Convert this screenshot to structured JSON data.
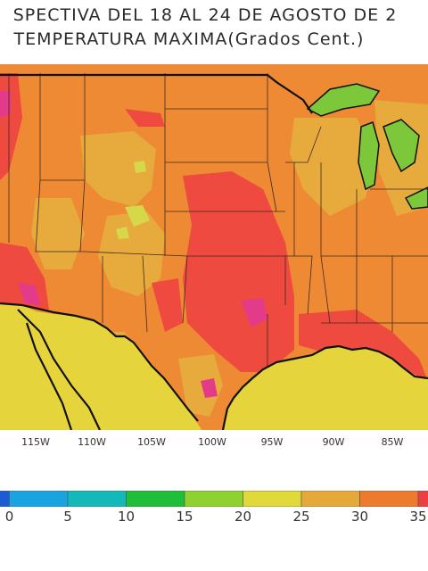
{
  "title_line1": "SPECTIVA DEL 18 AL 24 DE AGOSTO DE 2",
  "title_line2": "TEMPERATURA MAXIMA(Grados Cent.)",
  "longitude_labels": [
    "115W",
    "110W",
    "105W",
    "100W",
    "95W",
    "90W",
    "85W"
  ],
  "color_scale": {
    "ticks": [
      "0",
      "5",
      "10",
      "15",
      "20",
      "25",
      "30",
      "35"
    ],
    "bins": [
      {
        "from": -5,
        "to": 0,
        "color": "#1e5ad6"
      },
      {
        "from": 0,
        "to": 5,
        "color": "#18a4e0"
      },
      {
        "from": 5,
        "to": 10,
        "color": "#13b9b9"
      },
      {
        "from": 10,
        "to": 15,
        "color": "#1fbf3a"
      },
      {
        "from": 15,
        "to": 20,
        "color": "#8fd12e"
      },
      {
        "from": 20,
        "to": 25,
        "color": "#e1d93a"
      },
      {
        "from": 25,
        "to": 30,
        "color": "#e5a93a"
      },
      {
        "from": 30,
        "to": 35,
        "color": "#ee7a2d"
      },
      {
        "from": 35,
        "to": 40,
        "color": "#ec3f44"
      }
    ]
  },
  "colors": {
    "ocean": "#e6d43c",
    "land_base": "#ee8a33",
    "hot": "#ee4a3f",
    "very_hot": "#e33a8a",
    "warm": "#e7aa3d",
    "lakes": "#7cc83a",
    "borders": "#111111",
    "state_lines": "#3d2a20"
  }
}
